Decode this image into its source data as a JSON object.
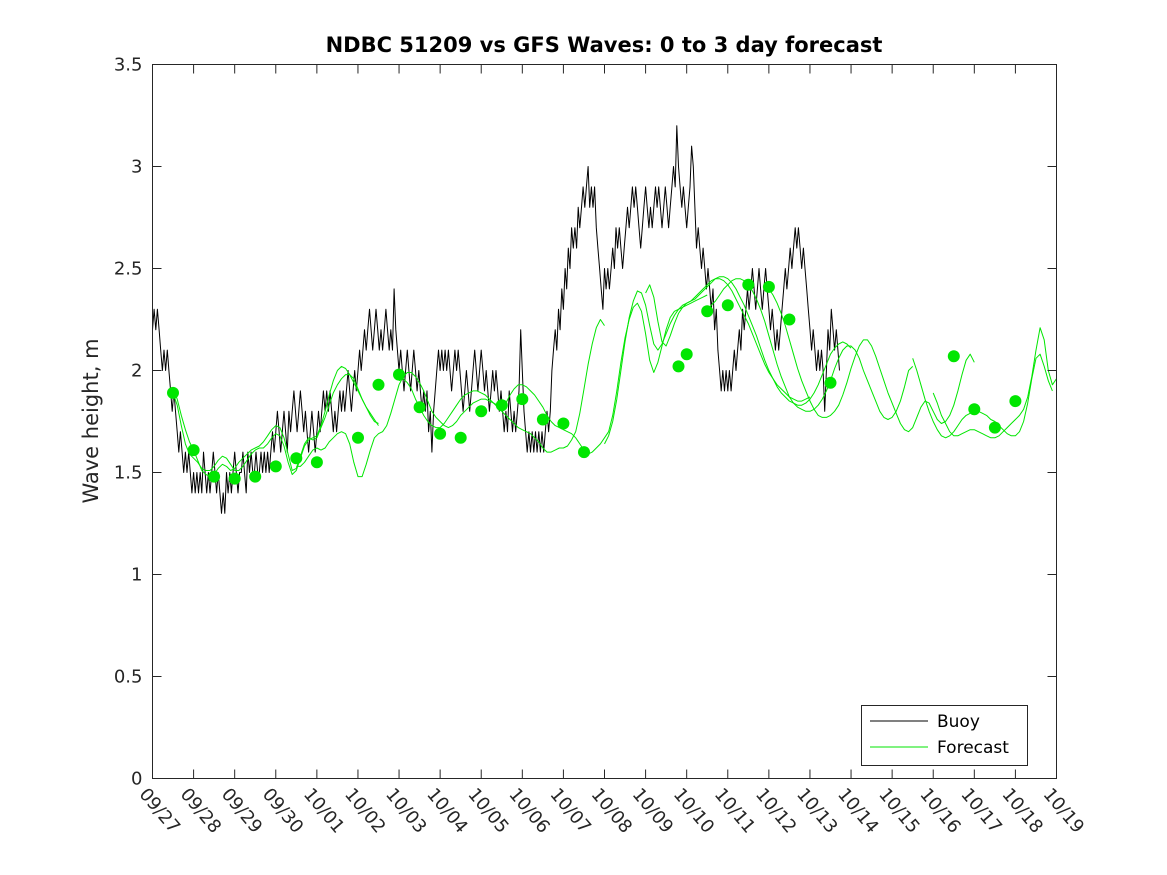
{
  "chart_data": {
    "type": "line",
    "title": "NDBC 51209 vs GFS Waves: 0 to 3 day forecast",
    "xlabel": "",
    "ylabel": "Wave height, m",
    "xlim": [
      0,
      22
    ],
    "ylim": [
      0,
      3.5
    ],
    "yticks": [
      0,
      0.5,
      1,
      1.5,
      2,
      2.5,
      3,
      3.5
    ],
    "ytick_labels": [
      "0",
      "0.5",
      "1",
      "1.5",
      "2",
      "2.5",
      "3",
      "3.5"
    ],
    "xticks": [
      0,
      1,
      2,
      3,
      4,
      5,
      6,
      7,
      8,
      9,
      10,
      11,
      12,
      13,
      14,
      15,
      16,
      17,
      18,
      19,
      20,
      21,
      22
    ],
    "xtick_labels": [
      "09/27",
      "09/28",
      "09/29",
      "09/30",
      "10/01",
      "10/02",
      "10/03",
      "10/04",
      "10/05",
      "10/06",
      "10/07",
      "10/08",
      "10/09",
      "10/10",
      "10/11",
      "10/12",
      "10/13",
      "10/14",
      "10/15",
      "10/16",
      "10/17",
      "10/18",
      "10/19"
    ],
    "x_unit": "days since 09/27",
    "legend": {
      "position": "bottom-right",
      "entries": [
        {
          "label": "Buoy",
          "color": "#000000"
        },
        {
          "label": "Forecast",
          "color": "#00e600"
        }
      ]
    },
    "series": [
      {
        "name": "Buoy",
        "color": "#000000",
        "x_start": 0,
        "x_step": 0.04,
        "values": [
          2.2,
          2.3,
          2.2,
          2.3,
          2.2,
          2.1,
          2.0,
          2.1,
          2.0,
          2.1,
          2.0,
          1.9,
          1.8,
          1.9,
          1.8,
          1.7,
          1.6,
          1.7,
          1.6,
          1.5,
          1.6,
          1.5,
          1.6,
          1.5,
          1.4,
          1.5,
          1.4,
          1.5,
          1.4,
          1.5,
          1.4,
          1.6,
          1.5,
          1.4,
          1.5,
          1.4,
          1.5,
          1.6,
          1.5,
          1.4,
          1.5,
          1.4,
          1.3,
          1.4,
          1.3,
          1.5,
          1.4,
          1.5,
          1.4,
          1.5,
          1.6,
          1.5,
          1.4,
          1.5,
          1.5,
          1.6,
          1.5,
          1.4,
          1.6,
          1.5,
          1.6,
          1.5,
          1.5,
          1.6,
          1.5,
          1.5,
          1.6,
          1.5,
          1.6,
          1.5,
          1.6,
          1.5,
          1.6,
          1.7,
          1.6,
          1.7,
          1.8,
          1.7,
          1.6,
          1.7,
          1.8,
          1.7,
          1.6,
          1.8,
          1.7,
          1.8,
          1.9,
          1.8,
          1.7,
          1.8,
          1.9,
          1.8,
          1.7,
          1.8,
          1.7,
          1.6,
          1.7,
          1.8,
          1.7,
          1.6,
          1.7,
          1.8,
          1.7,
          1.8,
          1.9,
          1.8,
          1.9,
          1.8,
          1.9,
          1.8,
          1.7,
          1.8,
          1.7,
          1.8,
          1.9,
          1.8,
          1.9,
          1.8,
          1.9,
          2.0,
          1.9,
          1.8,
          1.9,
          2.0,
          1.9,
          2.0,
          2.1,
          2.0,
          2.1,
          2.2,
          2.1,
          2.2,
          2.3,
          2.2,
          2.1,
          2.2,
          2.3,
          2.2,
          2.1,
          2.2,
          2.1,
          2.2,
          2.3,
          2.2,
          2.1,
          2.2,
          2.1,
          2.4,
          2.2,
          2.1,
          2.0,
          2.1,
          2.0,
          1.9,
          2.0,
          2.1,
          2.0,
          1.9,
          2.0,
          2.1,
          2.0,
          1.9,
          2.0,
          1.9,
          1.8,
          1.9,
          1.8,
          1.9,
          1.7,
          1.8,
          1.6,
          1.8,
          1.9,
          2.0,
          2.1,
          2.0,
          2.1,
          2.0,
          2.1,
          2.0,
          2.1,
          2.0,
          1.9,
          2.0,
          2.1,
          2.0,
          2.1,
          2.0,
          1.9,
          1.8,
          1.9,
          2.0,
          1.9,
          1.8,
          1.9,
          2.0,
          2.1,
          2.0,
          1.9,
          2.0,
          2.1,
          2.0,
          1.9,
          2.0,
          1.9,
          1.8,
          1.9,
          2.0,
          1.9,
          2.0,
          1.9,
          1.8,
          1.9,
          1.8,
          1.7,
          1.8,
          1.7,
          1.9,
          1.8,
          1.7,
          1.8,
          1.7,
          1.8,
          1.9,
          2.2,
          2.0,
          1.8,
          1.7,
          1.6,
          1.7,
          1.6,
          1.7,
          1.6,
          1.7,
          1.6,
          1.7,
          1.6,
          1.7,
          1.6,
          1.7,
          1.8,
          1.7,
          1.8,
          2.0,
          2.1,
          2.2,
          2.1,
          2.3,
          2.2,
          2.4,
          2.3,
          2.5,
          2.4,
          2.6,
          2.5,
          2.7,
          2.6,
          2.7,
          2.6,
          2.8,
          2.7,
          2.8,
          2.9,
          2.8,
          2.9,
          3.0,
          2.8,
          2.9,
          2.8,
          2.9,
          2.7,
          2.6,
          2.5,
          2.4,
          2.3,
          2.5,
          2.4,
          2.5,
          2.4,
          2.5,
          2.6,
          2.5,
          2.7,
          2.6,
          2.7,
          2.6,
          2.5,
          2.6,
          2.7,
          2.8,
          2.7,
          2.8,
          2.9,
          2.8,
          2.9,
          2.8,
          2.7,
          2.6,
          2.7,
          2.8,
          2.9,
          2.8,
          2.7,
          2.8,
          2.7,
          2.8,
          2.9,
          2.8,
          2.9,
          2.8,
          2.7,
          2.8,
          2.9,
          2.8,
          2.7,
          2.8,
          2.9,
          3.0,
          2.9,
          3.2,
          3.0,
          2.9,
          2.8,
          2.9,
          2.8,
          2.7,
          2.8,
          2.9,
          3.1,
          3.0,
          2.8,
          2.6,
          2.7,
          2.6,
          2.5,
          2.6,
          2.5,
          2.4,
          2.5,
          2.4,
          2.3,
          2.4,
          2.2,
          2.3,
          2.1,
          2.0,
          1.9,
          2.0,
          1.9,
          2.0,
          1.9,
          2.0,
          1.9,
          2.0,
          2.1,
          2.0,
          2.1,
          2.2,
          2.1,
          2.3,
          2.2,
          2.3,
          2.4,
          2.3,
          2.4,
          2.5,
          2.4,
          2.3,
          2.4,
          2.5,
          2.4,
          2.3,
          2.4,
          2.5,
          2.4,
          2.3,
          2.2,
          2.3,
          2.2,
          2.1,
          2.2,
          2.1,
          2.2,
          2.3,
          2.4,
          2.5,
          2.4,
          2.5,
          2.6,
          2.5,
          2.6,
          2.7,
          2.6,
          2.7,
          2.6,
          2.5,
          2.6,
          2.5,
          2.4,
          2.3,
          2.2,
          2.1,
          2.2,
          2.1,
          2.0,
          2.1,
          2.0,
          2.1,
          2.0,
          1.8,
          2.0,
          2.2,
          2.1,
          2.3,
          2.2,
          2.1,
          2.2,
          2.1,
          2.0
        ]
      },
      {
        "name": "Forecast run 1",
        "color": "#00e600",
        "x_start": 0.5,
        "x_step": 0.1,
        "values": [
          1.91,
          1.86,
          1.78,
          1.71,
          1.65,
          1.61,
          1.56,
          1.51,
          1.49,
          1.48,
          1.49,
          1.52,
          1.54,
          1.53,
          1.51,
          1.52,
          1.55,
          1.57,
          1.59,
          1.61,
          1.62,
          1.63,
          1.65,
          1.68,
          1.71,
          1.73,
          1.72,
          1.67,
          1.59,
          1.51,
          1.52,
          1.58,
          1.64,
          1.67,
          1.66,
          1.67,
          1.72,
          1.77,
          1.83,
          1.89,
          1.93,
          1.96,
          1.98,
          1.98,
          1.96,
          1.91,
          1.86,
          1.82,
          1.79,
          1.76,
          1.73
        ]
      },
      {
        "name": "Forecast run 2",
        "color": "#00e600",
        "x_start": 0.5,
        "x_step": 0.1,
        "values": [
          1.89,
          1.83,
          1.73,
          1.64,
          1.59,
          1.57,
          1.55,
          1.52,
          1.51,
          1.51,
          1.53,
          1.56,
          1.58,
          1.57,
          1.54,
          1.51,
          1.51,
          1.53,
          1.56,
          1.59,
          1.61,
          1.62,
          1.62,
          1.64,
          1.67,
          1.69,
          1.68,
          1.63,
          1.55,
          1.49,
          1.51,
          1.57,
          1.63,
          1.66,
          1.67,
          1.68,
          1.73,
          1.8,
          1.88,
          1.95,
          2.0,
          2.02,
          2.01,
          1.98,
          1.94,
          1.9,
          1.86,
          1.82,
          1.78,
          1.75,
          1.74
        ]
      },
      {
        "name": "Forecast run 3",
        "color": "#00e600",
        "x_start": 3.5,
        "x_step": 0.1,
        "values": [
          1.53,
          1.53,
          1.55,
          1.58,
          1.61,
          1.62,
          1.61,
          1.62,
          1.65,
          1.67,
          1.69,
          1.7,
          1.69,
          1.64,
          1.55,
          1.48,
          1.48,
          1.54,
          1.61,
          1.67,
          1.69,
          1.7,
          1.73,
          1.79,
          1.86,
          1.93,
          1.97,
          1.99,
          1.99,
          1.97,
          1.94,
          1.9,
          1.85,
          1.8,
          1.77,
          1.75,
          1.73,
          1.72,
          1.73,
          1.75,
          1.78,
          1.8,
          1.82,
          1.84,
          1.85,
          1.86,
          1.86,
          1.85,
          1.84,
          1.83,
          1.82
        ]
      },
      {
        "name": "Forecast run 4",
        "color": "#00e600",
        "x_start": 6.0,
        "x_step": 0.1,
        "values": [
          1.95,
          1.96,
          1.94,
          1.91,
          1.86,
          1.82,
          1.78,
          1.75,
          1.73,
          1.72,
          1.72,
          1.74,
          1.77,
          1.8,
          1.83,
          1.86,
          1.88,
          1.89,
          1.9,
          1.9,
          1.89,
          1.88,
          1.86,
          1.84,
          1.82,
          1.8,
          1.78,
          1.76,
          1.74,
          1.72,
          1.71,
          1.7,
          1.69,
          1.67,
          1.65,
          1.62,
          1.6,
          1.6,
          1.61,
          1.62,
          1.62,
          1.63,
          1.66,
          1.7,
          1.79,
          1.91,
          2.03,
          2.13,
          2.21,
          2.25,
          2.22
        ]
      },
      {
        "name": "Forecast run 5",
        "color": "#00e600",
        "x_start": 8.5,
        "x_step": 0.1,
        "values": [
          1.8,
          1.84,
          1.88,
          1.91,
          1.93,
          1.93,
          1.92,
          1.9,
          1.88,
          1.85,
          1.82,
          1.78,
          1.75,
          1.73,
          1.72,
          1.71,
          1.7,
          1.69,
          1.67,
          1.64,
          1.61,
          1.59,
          1.6,
          1.62,
          1.64,
          1.67,
          1.7,
          1.78,
          1.9,
          2.04,
          2.16,
          2.25,
          2.31,
          2.33,
          2.29,
          2.18,
          2.05,
          1.99,
          2.04,
          2.12,
          2.2,
          2.26,
          2.29,
          2.3,
          2.31,
          2.32,
          2.33,
          2.34,
          2.35,
          2.36,
          2.37
        ]
      },
      {
        "name": "Forecast run 6",
        "color": "#00e600",
        "x_start": 11.0,
        "x_step": 0.1,
        "values": [
          1.64,
          1.68,
          1.75,
          1.86,
          2.0,
          2.14,
          2.26,
          2.34,
          2.39,
          2.38,
          2.32,
          2.22,
          2.13,
          2.1,
          2.13,
          2.18,
          2.23,
          2.27,
          2.3,
          2.32,
          2.33,
          2.34,
          2.36,
          2.38,
          2.4,
          2.42,
          2.44,
          2.45,
          2.45,
          2.44,
          2.42,
          2.39,
          2.35,
          2.31,
          2.27,
          2.23,
          2.18,
          2.13,
          2.08,
          2.03,
          1.99,
          1.96,
          1.93,
          1.91,
          1.89,
          1.87,
          1.86,
          1.85,
          1.85,
          1.86,
          1.87
        ]
      },
      {
        "name": "Forecast run 7",
        "color": "#00e600",
        "x_start": 12.0,
        "x_step": 0.1,
        "values": [
          2.38,
          2.42,
          2.36,
          2.24,
          2.14,
          2.12,
          2.17,
          2.23,
          2.28,
          2.31,
          2.33,
          2.34,
          2.35,
          2.37,
          2.39,
          2.41,
          2.43,
          2.45,
          2.46,
          2.46,
          2.45,
          2.43,
          2.4,
          2.36,
          2.32,
          2.27,
          2.22,
          2.17,
          2.11,
          2.05,
          2.0,
          1.96,
          1.92,
          1.89,
          1.87,
          1.85,
          1.84,
          1.83,
          1.83,
          1.84,
          1.86,
          1.89,
          1.93,
          1.98,
          2.03,
          2.08,
          2.11,
          2.13,
          2.14,
          2.13,
          2.11
        ]
      },
      {
        "name": "Forecast run 8",
        "color": "#00e600",
        "x_start": 13.5,
        "x_step": 0.1,
        "values": [
          2.3,
          2.32,
          2.34,
          2.37,
          2.4,
          2.42,
          2.44,
          2.45,
          2.45,
          2.44,
          2.42,
          2.39,
          2.35,
          2.3,
          2.24,
          2.17,
          2.1,
          2.03,
          1.97,
          1.92,
          1.87,
          1.84,
          1.82,
          1.81,
          1.8,
          1.8,
          1.81,
          1.83,
          1.86,
          1.9,
          1.95,
          2.01,
          2.06,
          2.1,
          2.12,
          2.12,
          2.1,
          2.06,
          2.0,
          1.95,
          1.9,
          1.85,
          1.8,
          1.77,
          1.76,
          1.77,
          1.8,
          1.85,
          1.92,
          2.0,
          2.02
        ]
      },
      {
        "name": "Forecast run 9",
        "color": "#00e600",
        "x_start": 15.0,
        "x_step": 0.1,
        "values": [
          2.4,
          2.37,
          2.33,
          2.28,
          2.22,
          2.15,
          2.08,
          2.01,
          1.95,
          1.9,
          1.85,
          1.81,
          1.78,
          1.77,
          1.77,
          1.78,
          1.8,
          1.83,
          1.88,
          1.94,
          2.01,
          2.07,
          2.12,
          2.15,
          2.15,
          2.12,
          2.07,
          2.01,
          1.95,
          1.89,
          1.84,
          1.79,
          1.74,
          1.71,
          1.7,
          1.72,
          1.77,
          1.82,
          1.85,
          1.84,
          1.8,
          1.76,
          1.74,
          1.75,
          1.78,
          1.83,
          1.9,
          1.98,
          2.05,
          2.08,
          2.04
        ]
      },
      {
        "name": "Forecast run 10",
        "color": "#00e600",
        "x_start": 18.5,
        "x_step": 0.1,
        "values": [
          2.06,
          2.0,
          1.93,
          1.86,
          1.8,
          1.75,
          1.71,
          1.68,
          1.67,
          1.68,
          1.7,
          1.73,
          1.76,
          1.78,
          1.79,
          1.8,
          1.8,
          1.79,
          1.78,
          1.76,
          1.75,
          1.73,
          1.71,
          1.69,
          1.68,
          1.68,
          1.7,
          1.75,
          1.84,
          1.96,
          2.06,
          2.08,
          2.02,
          1.95,
          1.9
        ]
      },
      {
        "name": "Forecast run 11",
        "color": "#00e600",
        "x_start": 19.0,
        "x_step": 0.1,
        "values": [
          1.89,
          1.84,
          1.78,
          1.74,
          1.7,
          1.68,
          1.68,
          1.69,
          1.7,
          1.71,
          1.71,
          1.7,
          1.69,
          1.68,
          1.67,
          1.67,
          1.68,
          1.7,
          1.72,
          1.74,
          1.76,
          1.78,
          1.81,
          1.87,
          1.97,
          2.1,
          2.21,
          2.15,
          2.0,
          1.93,
          1.96
        ]
      },
      {
        "name": "Forecast analysis points",
        "color": "#00e600",
        "markers": true,
        "x": [
          0.5,
          1.0,
          1.5,
          2.0,
          2.5,
          3.0,
          3.5,
          4.0,
          5.0,
          5.5,
          6.0,
          6.5,
          7.0,
          7.5,
          8.0,
          8.5,
          9.0,
          9.5,
          10.0,
          10.5,
          12.8,
          13.0,
          13.5,
          14.0,
          14.5,
          15.0,
          15.5,
          16.5,
          19.5,
          20.0,
          20.5,
          21.0
        ],
        "values": [
          1.89,
          1.61,
          1.48,
          1.47,
          1.48,
          1.53,
          1.57,
          1.55,
          1.67,
          1.93,
          1.98,
          1.82,
          1.69,
          1.67,
          1.8,
          1.83,
          1.86,
          1.76,
          1.74,
          1.6,
          2.02,
          2.08,
          2.29,
          2.32,
          2.42,
          2.41,
          2.25,
          1.94,
          2.07,
          1.81,
          1.72,
          1.85
        ]
      }
    ]
  }
}
